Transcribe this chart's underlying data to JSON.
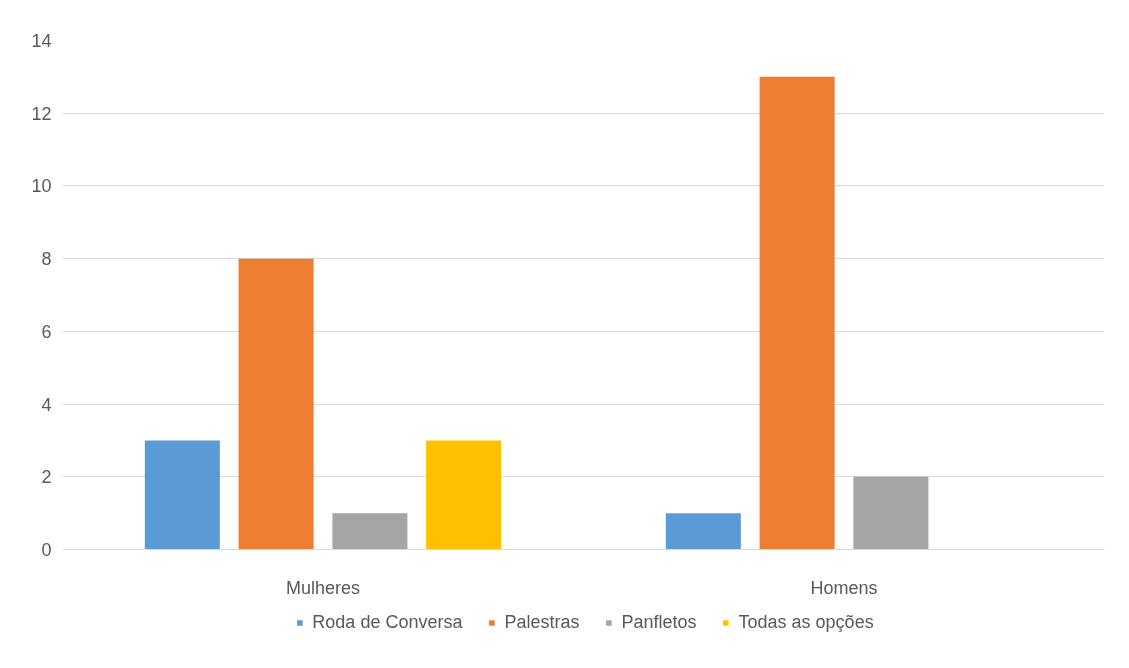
{
  "chart_data": {
    "type": "bar",
    "categories": [
      "Mulheres",
      "Homens"
    ],
    "series": [
      {
        "name": "Roda de Conversa",
        "color": "#5b9bd5",
        "values": [
          3,
          1
        ]
      },
      {
        "name": "Palestras",
        "color": "#ed7d31",
        "values": [
          8,
          13
        ]
      },
      {
        "name": "Panfletos",
        "color": "#a5a5a5",
        "values": [
          1,
          2
        ]
      },
      {
        "name": "Todas as opções",
        "color": "#ffc000",
        "values": [
          3,
          0
        ]
      }
    ],
    "ylim": [
      0,
      14
    ],
    "yticks": [
      0,
      2,
      4,
      6,
      8,
      10,
      12,
      14
    ],
    "grid": "y",
    "legend": "bottom"
  }
}
